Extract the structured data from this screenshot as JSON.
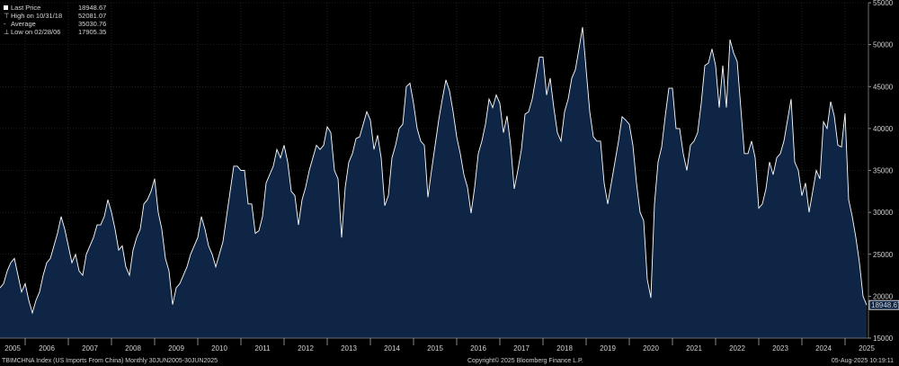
{
  "legend": {
    "last_price": {
      "label": "Last Price",
      "value": "18948.67"
    },
    "high": {
      "label": "High on 10/31/18",
      "value": "52081.07"
    },
    "average": {
      "label": "Average",
      "value": "35030.76"
    },
    "low": {
      "label": "Low on 02/28/06",
      "value": "17905.35"
    }
  },
  "last_price_tag": "18948.67",
  "footer": {
    "left": "TBIMCHNA Index (US Imports From China)  Monthly 30JUN2005-30JUN2025",
    "center": "Copyright© 2025 Bloomberg Finance L.P.",
    "right": "05-Aug-2025 10:19:11"
  },
  "colors": {
    "background": "#000000",
    "area_fill": "#0e2546",
    "line": "#ffffff",
    "grid": "#3a3a3a"
  },
  "chart_data": {
    "type": "area",
    "title": "",
    "xlabel": "",
    "ylabel": "",
    "ylim": [
      15000,
      55000
    ],
    "yticks": [
      15000,
      20000,
      25000,
      30000,
      35000,
      40000,
      45000,
      50000,
      55000
    ],
    "xticks": [
      "2005",
      "2006",
      "2007",
      "2008",
      "2009",
      "2010",
      "2011",
      "2012",
      "2013",
      "2014",
      "2015",
      "2016",
      "2017",
      "2018",
      "2019",
      "2020",
      "2021",
      "2022",
      "2023",
      "2024",
      "2025"
    ],
    "grid": true,
    "y_axis_side": "right",
    "start": "2005-06",
    "frequency": "monthly",
    "series": [
      {
        "name": "US Imports From China",
        "values": [
          21000,
          21500,
          23000,
          24000,
          24500,
          22500,
          20500,
          21500,
          19500,
          18000,
          19500,
          20500,
          22500,
          24000,
          24500,
          26000,
          27500,
          29500,
          28000,
          26000,
          24000,
          25000,
          23000,
          22500,
          25000,
          26000,
          27000,
          28500,
          28500,
          29500,
          31500,
          30000,
          28000,
          25500,
          26000,
          23500,
          22500,
          25500,
          27000,
          28000,
          31000,
          31500,
          32500,
          34000,
          30000,
          28000,
          24500,
          23000,
          19000,
          21000,
          21500,
          22500,
          23500,
          25000,
          26000,
          27000,
          29500,
          28000,
          26000,
          25000,
          23500,
          25000,
          26500,
          29500,
          32500,
          35500,
          35500,
          35000,
          35000,
          31000,
          31000,
          27500,
          27800,
          29500,
          33500,
          34500,
          35500,
          37500,
          36500,
          38000,
          36000,
          32500,
          32000,
          28500,
          31500,
          33000,
          35000,
          36500,
          38000,
          37500,
          38000,
          40200,
          39500,
          35000,
          34000,
          27000,
          33000,
          36000,
          37000,
          38800,
          39000,
          40500,
          42000,
          41000,
          37500,
          39200,
          36500,
          30800,
          32000,
          36500,
          38000,
          40000,
          40500,
          45000,
          45400,
          43000,
          40000,
          38500,
          38000,
          31800,
          35000,
          38000,
          41000,
          43500,
          45800,
          44500,
          42000,
          39000,
          37000,
          34500,
          33000,
          29900,
          33000,
          37000,
          38500,
          40500,
          43500,
          42500,
          44000,
          43000,
          39500,
          41500,
          38000,
          32800,
          35000,
          37500,
          41700,
          42000,
          43500,
          46000,
          48500,
          48500,
          44000,
          46000,
          42500,
          39500,
          38500,
          42000,
          43500,
          46000,
          47000,
          49500,
          52081,
          47000,
          42000,
          39000,
          38500,
          38500,
          33500,
          31000,
          33500,
          36000,
          38500,
          41400,
          41000,
          40500,
          38000,
          33500,
          30000,
          29000,
          22000,
          19800,
          31000,
          36000,
          37800,
          41500,
          44800,
          44800,
          40000,
          40000,
          37000,
          35000,
          38000,
          38500,
          39500,
          43000,
          47500,
          47800,
          49500,
          47500,
          42500,
          47500,
          42500,
          50600,
          49000,
          48000,
          42500,
          37000,
          37000,
          38500,
          36500,
          30500,
          31000,
          32800,
          36000,
          34500,
          36500,
          37000,
          38500,
          41000,
          43500,
          36000,
          35000,
          32000,
          33500,
          30000,
          32500,
          35000,
          34000,
          40800,
          40000,
          43200,
          41500,
          38000,
          37800,
          41800,
          31500,
          29500,
          27000,
          24000,
          20000,
          18948.67
        ]
      }
    ]
  }
}
